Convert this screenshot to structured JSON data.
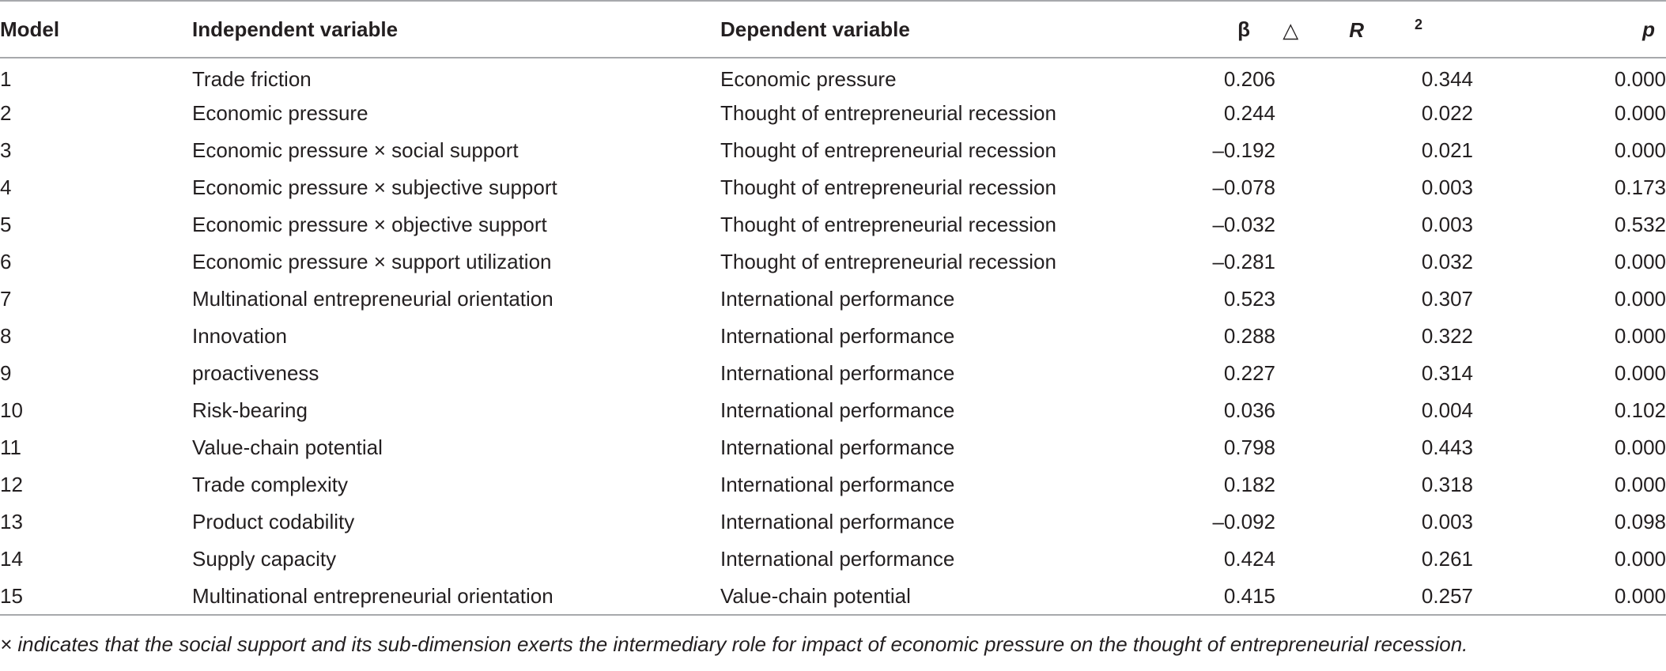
{
  "table": {
    "headers": {
      "model": "Model",
      "independent": "Independent variable",
      "dependent": "Dependent variable",
      "beta": "β",
      "delta_r2_prefix": "△",
      "delta_r2_letter": "R",
      "delta_r2_exp": "2",
      "p": "p"
    },
    "rows": [
      {
        "model": "1",
        "independent": "Trade friction",
        "dependent": "Economic pressure",
        "beta": "0.206",
        "r2": "0.344",
        "p": "0.000"
      },
      {
        "model": "2",
        "independent": "Economic pressure",
        "dependent": "Thought of entrepreneurial recession",
        "beta": "0.244",
        "r2": "0.022",
        "p": "0.000"
      },
      {
        "model": "3",
        "independent": "Economic pressure × social support",
        "dependent": "Thought of entrepreneurial recession",
        "beta": "–0.192",
        "r2": "0.021",
        "p": "0.000"
      },
      {
        "model": "4",
        "independent": "Economic pressure × subjective support",
        "dependent": "Thought of entrepreneurial recession",
        "beta": "–0.078",
        "r2": "0.003",
        "p": "0.173"
      },
      {
        "model": "5",
        "independent": "Economic pressure × objective support",
        "dependent": "Thought of entrepreneurial recession",
        "beta": "–0.032",
        "r2": "0.003",
        "p": "0.532"
      },
      {
        "model": "6",
        "independent": "Economic pressure × support utilization",
        "dependent": "Thought of entrepreneurial recession",
        "beta": "–0.281",
        "r2": "0.032",
        "p": "0.000"
      },
      {
        "model": "7",
        "independent": "Multinational entrepreneurial orientation",
        "dependent": "International performance",
        "beta": "0.523",
        "r2": "0.307",
        "p": "0.000"
      },
      {
        "model": "8",
        "independent": "Innovation",
        "dependent": "International performance",
        "beta": "0.288",
        "r2": "0.322",
        "p": "0.000"
      },
      {
        "model": "9",
        "independent": "proactiveness",
        "dependent": "International performance",
        "beta": "0.227",
        "r2": "0.314",
        "p": "0.000"
      },
      {
        "model": "10",
        "independent": "Risk-bearing",
        "dependent": "International performance",
        "beta": "0.036",
        "r2": "0.004",
        "p": "0.102"
      },
      {
        "model": "11",
        "independent": "Value-chain potential",
        "dependent": "International performance",
        "beta": "0.798",
        "r2": "0.443",
        "p": "0.000"
      },
      {
        "model": "12",
        "independent": "Trade complexity",
        "dependent": "International performance",
        "beta": "0.182",
        "r2": "0.318",
        "p": "0.000"
      },
      {
        "model": "13",
        "independent": "Product codability",
        "dependent": "International performance",
        "beta": "–0.092",
        "r2": "0.003",
        "p": "0.098"
      },
      {
        "model": "14",
        "independent": "Supply capacity",
        "dependent": "International performance",
        "beta": "0.424",
        "r2": "0.261",
        "p": "0.000"
      },
      {
        "model": "15",
        "independent": "Multinational entrepreneurial orientation",
        "dependent": "Value-chain potential",
        "beta": "0.415",
        "r2": "0.257",
        "p": "0.000"
      }
    ]
  },
  "footnote": "× indicates that the social support and its sub-dimension exerts the intermediary role for impact of economic pressure on the thought of entrepreneurial recession."
}
